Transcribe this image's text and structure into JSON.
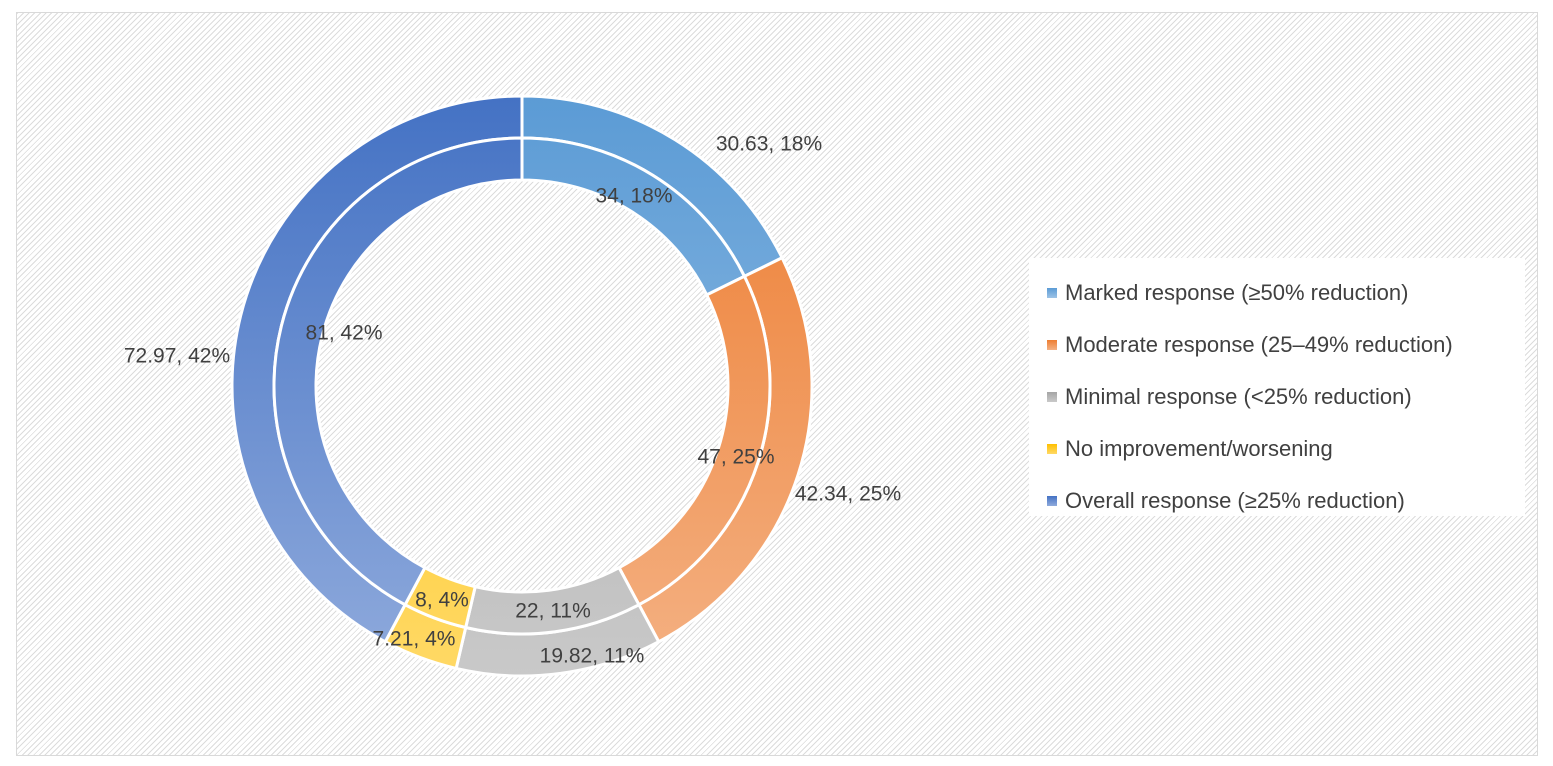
{
  "chart_data": {
    "type": "pie",
    "subtype": "doughnut",
    "title": "",
    "categories": [
      "Marked response (≥50% reduction)",
      "Moderate response (25–49% reduction)",
      "Minimal response (<25% reduction)",
      "No improvement/worsening",
      "Overall response (≥25% reduction)"
    ],
    "series": [
      {
        "ring": "outer",
        "values": [
          30.63,
          42.34,
          19.82,
          7.21,
          72.97
        ],
        "percents": [
          "18%",
          "25%",
          "11%",
          "4%",
          "42%"
        ],
        "labels": [
          "30.63, 18%",
          "42.34, 25%",
          "19.82, 11%",
          "7.21, 4%",
          "72.97, 42%"
        ]
      },
      {
        "ring": "inner",
        "values": [
          34,
          47,
          22,
          8,
          81
        ],
        "percents": [
          "18%",
          "25%",
          "11%",
          "4%",
          "42%"
        ],
        "labels": [
          "34, 18%",
          "47, 25%",
          "22, 11%",
          "8, 4%",
          "81, 42%"
        ]
      }
    ],
    "colors": [
      {
        "light": "#9dc3e6",
        "dark": "#5b9bd5"
      },
      {
        "light": "#f4b183",
        "dark": "#ed7d31"
      },
      {
        "light": "#c9c9c9",
        "dark": "#a5a5a5"
      },
      {
        "light": "#ffd966",
        "dark": "#ffc000"
      },
      {
        "light": "#8faadc",
        "dark": "#4472c4"
      }
    ],
    "legend_position": "right",
    "background": "diagonal hatch"
  }
}
